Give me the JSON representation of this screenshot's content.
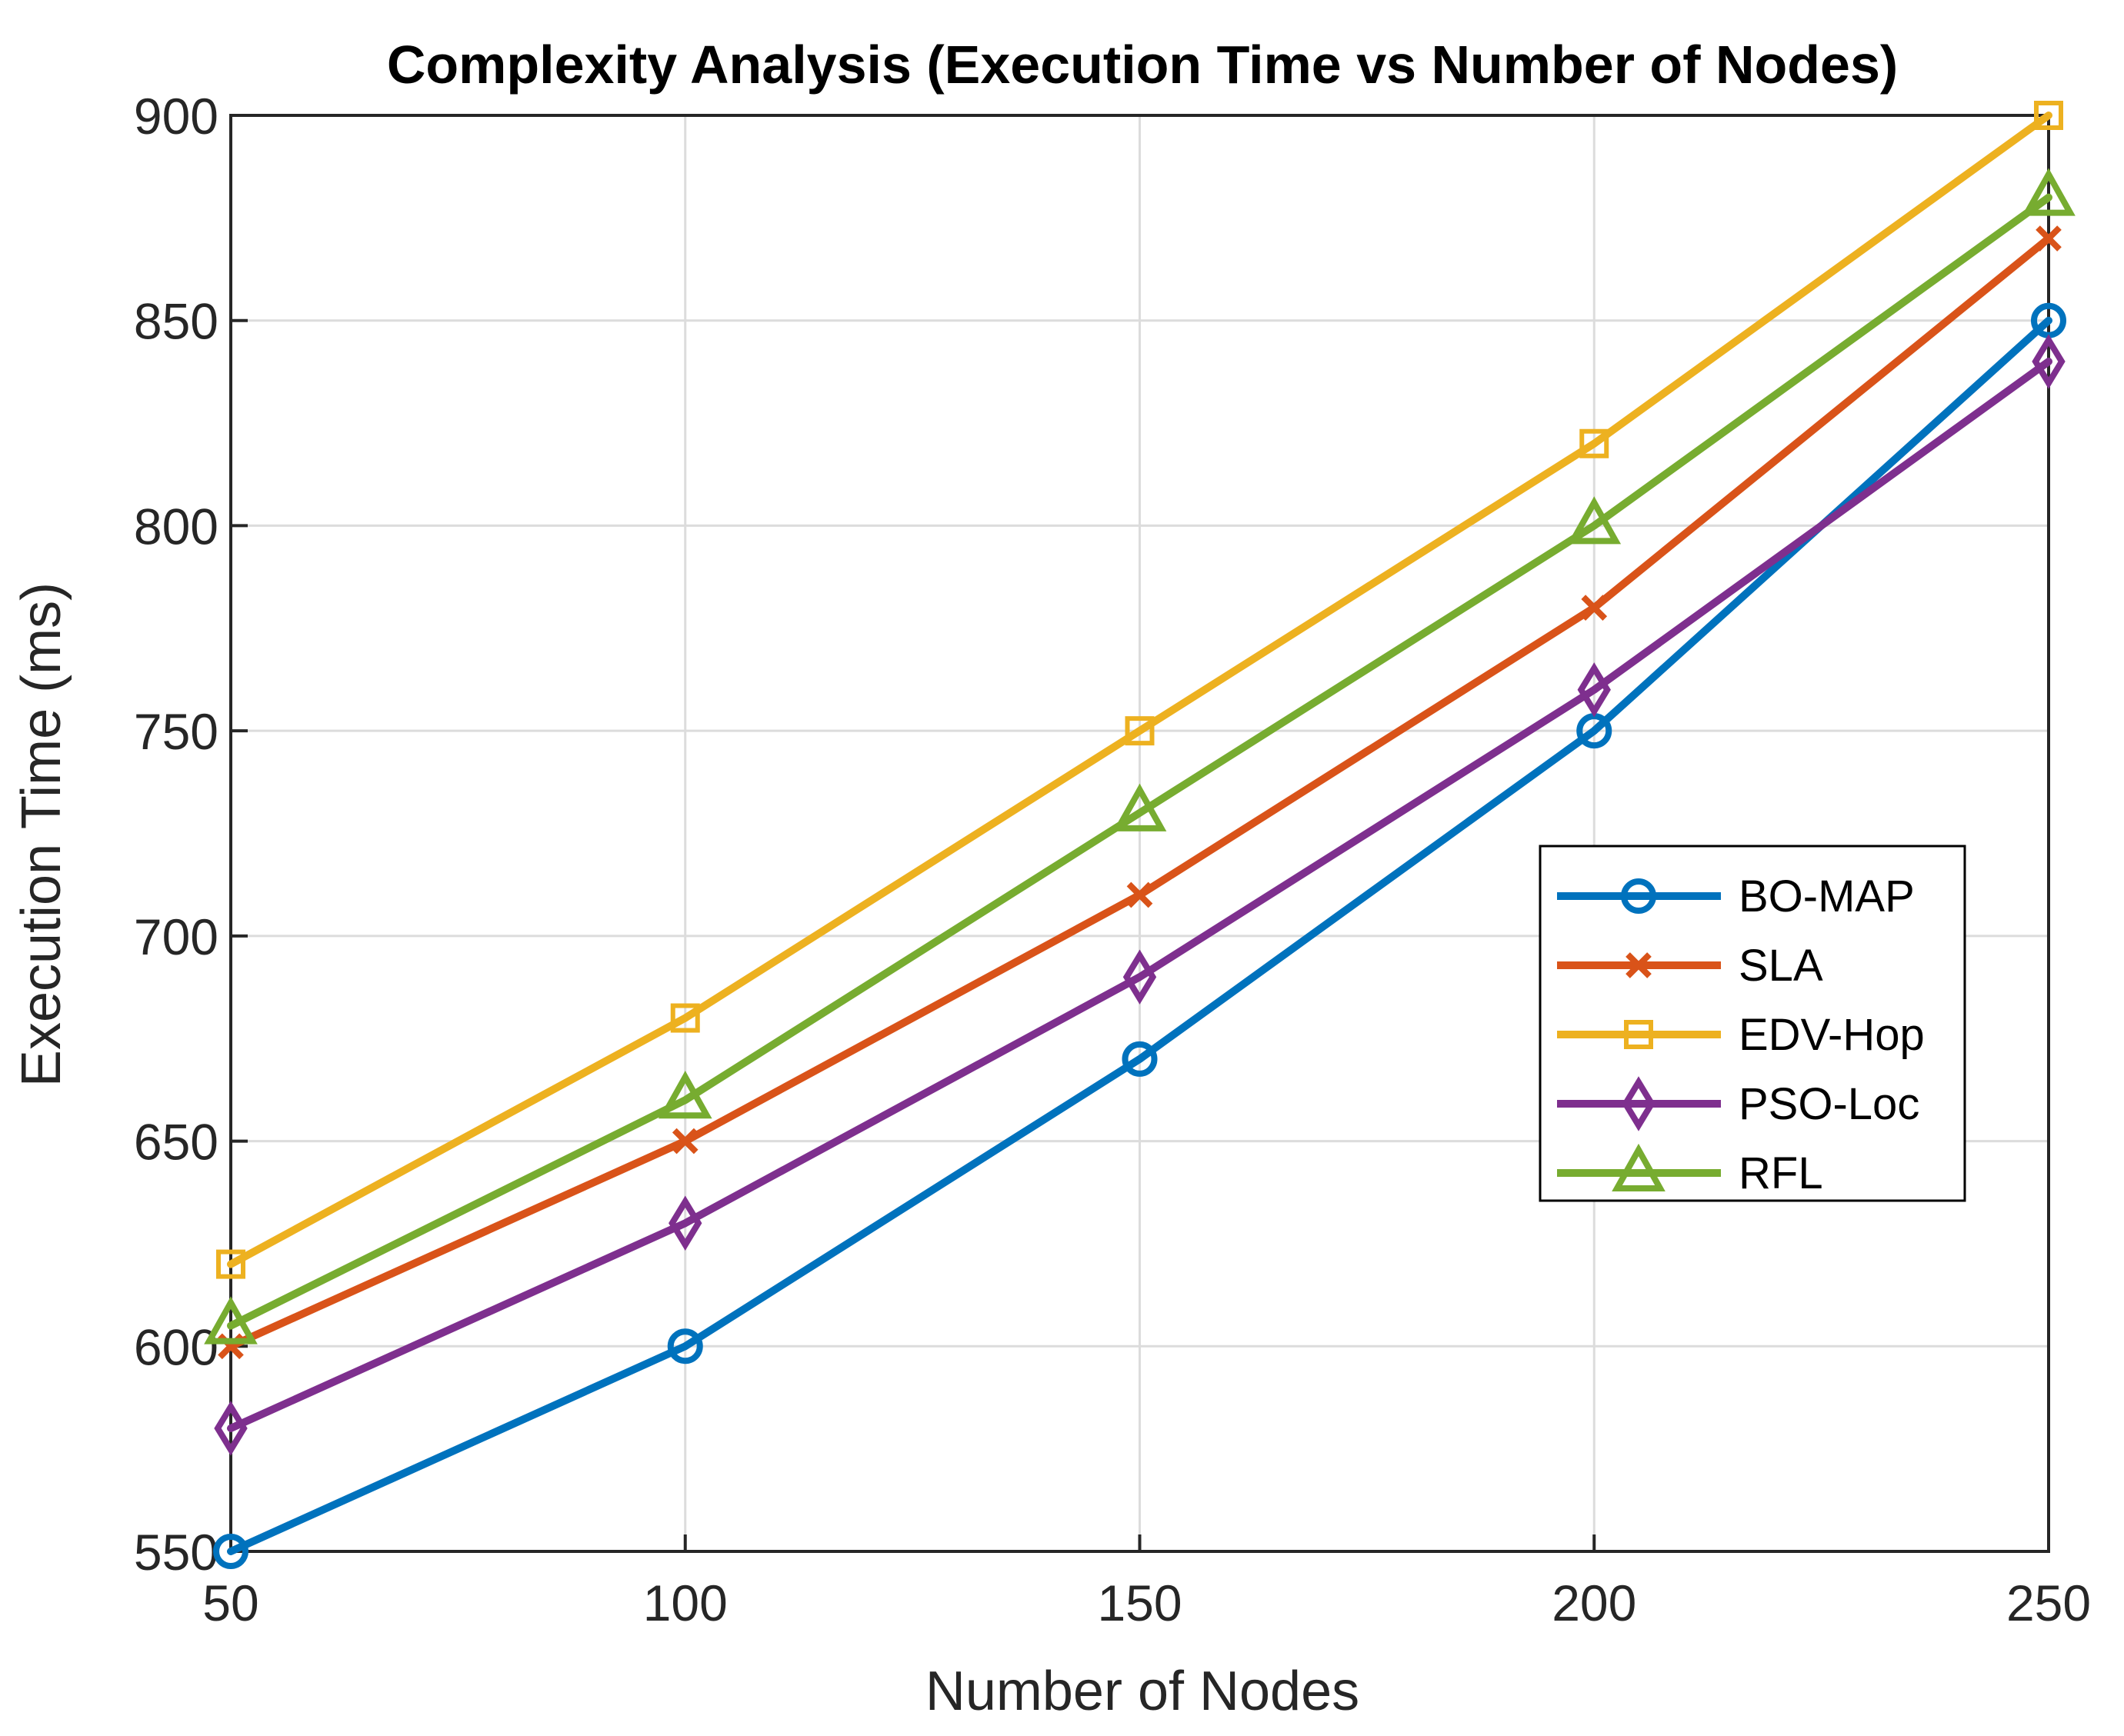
{
  "chart_data": {
    "type": "line",
    "title": "Complexity Analysis (Execution Time vs Number of Nodes)",
    "xlabel": "Number of Nodes",
    "ylabel": "Execution Time (ms)",
    "x": [
      50,
      100,
      150,
      200,
      250
    ],
    "xlim": [
      50,
      250
    ],
    "ylim": [
      550,
      900
    ],
    "xticks": [
      50,
      100,
      150,
      200,
      250
    ],
    "yticks": [
      550,
      600,
      650,
      700,
      750,
      800,
      850,
      900
    ],
    "grid": true,
    "legend_position": "right-middle",
    "series": [
      {
        "name": "BO-MAP",
        "values": [
          550,
          600,
          670,
          750,
          850
        ],
        "color": "#0072BD",
        "marker": "circle"
      },
      {
        "name": "SLA",
        "values": [
          600,
          650,
          710,
          780,
          870
        ],
        "color": "#D95319",
        "marker": "x"
      },
      {
        "name": "EDV-Hop",
        "values": [
          620,
          680,
          750,
          820,
          900
        ],
        "color": "#EDB120",
        "marker": "square"
      },
      {
        "name": "PSO-Loc",
        "values": [
          580,
          630,
          690,
          760,
          840
        ],
        "color": "#7E2F8E",
        "marker": "diamond"
      },
      {
        "name": "RFL",
        "values": [
          605,
          660,
          730,
          800,
          880
        ],
        "color": "#77AC30",
        "marker": "triangle"
      }
    ]
  }
}
